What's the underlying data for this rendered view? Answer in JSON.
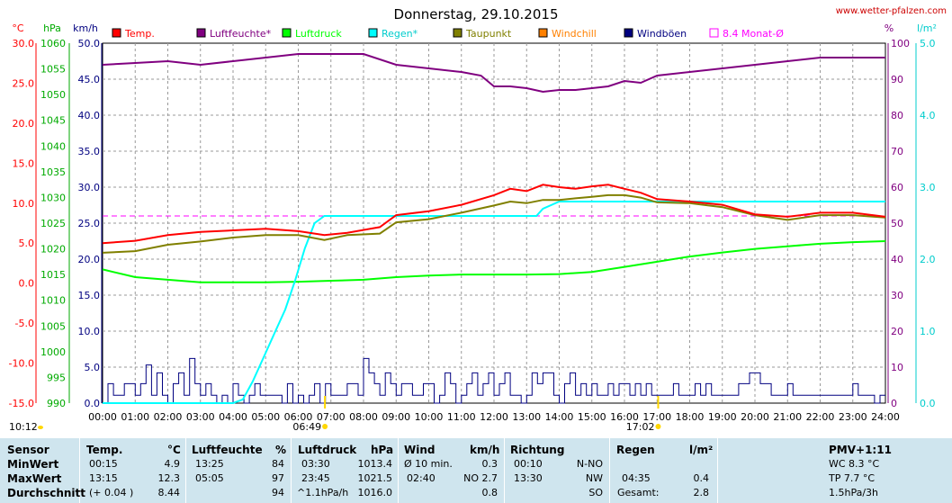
{
  "title": "Donnerstag, 29.10.2015",
  "source": "www.wetter-pfalzen.com",
  "axis_units": {
    "temp": "°C",
    "pressure": "hPa",
    "wind": "km/h",
    "humidity": "%",
    "rain": "l/m²"
  },
  "legend": [
    "Temp.",
    "Luftfeuchte*",
    "Luftdruck",
    "Regen*",
    "Taupunkt",
    "Windchill",
    "Windböen",
    "8.4 Monat-Ø"
  ],
  "markers": {
    "sunrise": "06:49",
    "sunset": "17:02",
    "moon_left": "10:12"
  },
  "colors": {
    "temp": "#ff0000",
    "humidity": "#800080",
    "pressure": "#00ff00",
    "rain": "#00ffff",
    "dew": "#808000",
    "windchill": "#ff8000",
    "gust": "#000080",
    "month_avg": "#ff00ff",
    "summary_bg": "#cfe5ee"
  },
  "chart_data": {
    "type": "line",
    "x_label_unit": "time",
    "x_ticks": [
      "00:00",
      "01:00",
      "02:00",
      "03:00",
      "04:00",
      "05:00",
      "06:00",
      "07:00",
      "08:00",
      "09:00",
      "10:00",
      "11:00",
      "12:00",
      "13:00",
      "14:00",
      "15:00",
      "16:00",
      "17:00",
      "18:00",
      "19:00",
      "20:00",
      "21:00",
      "22:00",
      "23:00",
      "24:00"
    ],
    "axes": {
      "temp": {
        "label": "°C",
        "range": [
          -15,
          30
        ],
        "ticks": [
          "30.0",
          "25.0",
          "20.0",
          "15.0",
          "10.0",
          "5.0",
          "0.0",
          "-5.0",
          "-10.0",
          "-15.0"
        ]
      },
      "pressure": {
        "label": "hPa",
        "range": [
          990,
          1060
        ],
        "ticks": [
          "1060",
          "1055",
          "1050",
          "1045",
          "1040",
          "1035",
          "1030",
          "1025",
          "1020",
          "1015",
          "1010",
          "1005",
          "1000",
          "995",
          "990"
        ]
      },
      "wind": {
        "label": "km/h",
        "range": [
          0,
          50
        ],
        "ticks": [
          "50.0",
          "45.0",
          "40.0",
          "35.0",
          "30.0",
          "25.0",
          "20.0",
          "15.0",
          "10.0",
          "5.0",
          "0.0"
        ]
      },
      "humidity": {
        "label": "%",
        "range": [
          0,
          100
        ],
        "ticks": [
          "100",
          "90",
          "80",
          "70",
          "60",
          "50",
          "40",
          "30",
          "20",
          "10",
          "0"
        ]
      },
      "rain": {
        "label": "l/m²",
        "range": [
          0,
          5
        ],
        "ticks": [
          "5.0",
          "4.0",
          "3.0",
          "2.0",
          "1.0",
          "0.0"
        ]
      }
    },
    "grid": true,
    "series": [
      {
        "name": "Temp.",
        "axis": "temp",
        "x": [
          0,
          1,
          2,
          3,
          4,
          5,
          6,
          6.8,
          7.5,
          8.5,
          9,
          10,
          11,
          12,
          12.5,
          13,
          13.5,
          14,
          14.5,
          15,
          15.5,
          16,
          16.5,
          17,
          18,
          19,
          20,
          21,
          22,
          23,
          24
        ],
        "y": [
          5.0,
          5.3,
          6.0,
          6.4,
          6.6,
          6.8,
          6.5,
          6.0,
          6.3,
          7.0,
          8.5,
          9.0,
          9.8,
          11.0,
          11.8,
          11.5,
          12.3,
          12.0,
          11.8,
          12.1,
          12.3,
          11.8,
          11.3,
          10.5,
          10.2,
          9.8,
          8.6,
          8.3,
          8.8,
          8.8,
          8.3
        ]
      },
      {
        "name": "Luftfeuchte*",
        "axis": "humidity",
        "x": [
          0,
          1,
          2,
          3,
          4,
          5,
          6,
          7,
          8,
          9,
          10,
          11,
          11.6,
          12,
          12.5,
          13,
          13.5,
          14,
          14.5,
          15,
          15.5,
          16,
          16.5,
          17,
          18,
          19,
          20,
          21,
          22,
          23,
          24
        ],
        "y": [
          94,
          94.5,
          95,
          94,
          95,
          96,
          97,
          97,
          97,
          94,
          93,
          92,
          91,
          88,
          88,
          87.5,
          86.5,
          87,
          87,
          87.5,
          88,
          89.5,
          89,
          91,
          92,
          93,
          94,
          95,
          96,
          96,
          96
        ]
      },
      {
        "name": "Luftdruck",
        "axis": "pressure",
        "x": [
          0,
          1,
          2,
          3,
          4,
          5,
          6,
          7,
          8,
          9,
          10,
          11,
          12,
          13,
          14,
          15,
          16,
          17,
          18,
          19,
          20,
          21,
          22,
          23,
          24
        ],
        "y": [
          1016.0,
          1014.5,
          1014.0,
          1013.5,
          1013.5,
          1013.5,
          1013.6,
          1013.8,
          1014.0,
          1014.5,
          1014.8,
          1015.0,
          1015.0,
          1015.0,
          1015.1,
          1015.5,
          1016.5,
          1017.5,
          1018.5,
          1019.3,
          1020.0,
          1020.5,
          1021.0,
          1021.3,
          1021.5
        ]
      },
      {
        "name": "Regen*",
        "axis": "rain",
        "x": [
          0,
          1,
          2,
          3,
          4,
          4.3,
          4.6,
          5,
          5.3,
          5.6,
          5.9,
          6.2,
          6.5,
          6.8,
          7,
          7.5,
          8,
          9,
          10,
          11,
          12,
          13,
          13.3,
          13.5,
          14,
          15,
          16,
          17,
          18,
          19,
          20,
          21,
          22,
          23,
          24
        ],
        "y": [
          0,
          0,
          0,
          0,
          0,
          0.05,
          0.3,
          0.7,
          1.0,
          1.3,
          1.7,
          2.15,
          2.5,
          2.6,
          2.6,
          2.6,
          2.6,
          2.6,
          2.6,
          2.6,
          2.6,
          2.6,
          2.6,
          2.7,
          2.8,
          2.8,
          2.8,
          2.8,
          2.8,
          2.8,
          2.8,
          2.8,
          2.8,
          2.8,
          2.8
        ]
      },
      {
        "name": "Taupunkt",
        "axis": "temp",
        "x": [
          0,
          1,
          2,
          3,
          4,
          5,
          6,
          6.8,
          7.5,
          8.5,
          9,
          10,
          11,
          12,
          12.5,
          13,
          13.5,
          14,
          14.5,
          15,
          15.5,
          16,
          16.5,
          17,
          18,
          19,
          20,
          21,
          22,
          23,
          24
        ],
        "y": [
          3.8,
          4.0,
          4.8,
          5.2,
          5.7,
          6.0,
          6.0,
          5.4,
          6.0,
          6.2,
          7.6,
          8.0,
          8.8,
          9.7,
          10.2,
          10.0,
          10.4,
          10.4,
          10.6,
          10.8,
          11.0,
          11.0,
          10.7,
          10.1,
          10.0,
          9.5,
          8.5,
          7.9,
          8.5,
          8.5,
          8.2
        ]
      }
    ],
    "gust_series": {
      "name": "Windböen",
      "axis": "wind",
      "step_minutes": 10,
      "values": [
        0,
        2.7,
        1.1,
        1.1,
        2.7,
        2.7,
        1.1,
        2.7,
        5.3,
        1.1,
        4.2,
        1.1,
        0,
        2.7,
        4.2,
        1.1,
        6.2,
        2.7,
        1.1,
        2.7,
        1.1,
        0,
        1.1,
        0,
        2.7,
        1.1,
        0,
        1.1,
        2.7,
        1.1,
        1.1,
        1.1,
        1.1,
        0,
        2.7,
        0,
        1.1,
        0,
        1.1,
        2.7,
        0,
        2.7,
        1.1,
        1.1,
        1.1,
        2.7,
        2.7,
        1.1,
        6.2,
        4.2,
        2.7,
        1.1,
        4.2,
        2.7,
        1.1,
        2.7,
        2.7,
        1.1,
        1.1,
        2.7,
        2.7,
        0,
        1.1,
        4.2,
        2.7,
        0,
        1.1,
        2.7,
        4.2,
        1.1,
        2.7,
        4.2,
        1.1,
        2.7,
        4.2,
        1.1,
        1.1,
        0,
        1.1,
        4.2,
        2.7,
        4.2,
        4.2,
        1.1,
        0,
        2.7,
        4.2,
        1.1,
        2.7,
        1.1,
        2.7,
        1.1,
        1.1,
        2.7,
        1.1,
        2.7,
        2.7,
        1.1,
        2.7,
        1.1,
        2.7,
        1.1,
        1.1,
        1.1,
        1.1,
        2.7,
        1.1,
        1.1,
        1.1,
        2.7,
        1.1,
        2.7,
        1.1,
        1.1,
        1.1,
        1.1,
        1.1,
        2.7,
        2.7,
        4.2,
        4.2,
        2.7,
        2.7,
        1.1,
        1.1,
        1.1,
        2.7,
        1.1,
        1.1,
        1.1,
        1.1,
        1.1,
        1.1,
        1.1,
        1.1,
        1.1,
        1.1,
        1.1,
        2.7,
        1.1,
        1.1,
        1.1,
        0,
        1.1
      ]
    },
    "month_avg": {
      "name": "8.4 Monat-Ø",
      "axis": "temp",
      "value": 8.4
    }
  },
  "summary": {
    "headers": {
      "sensor": "Sensor",
      "temp": "Temp.",
      "temp_unit": "°C",
      "hum": "Luftfeuchte",
      "hum_unit": "%",
      "press": "Luftdruck",
      "press_unit": "hPa",
      "wind": "Wind",
      "wind_unit": "km/h",
      "dir": "Richtung",
      "rain": "Regen",
      "rain_unit": "l/m²",
      "pmv": "PMV+1:11"
    },
    "rows": [
      {
        "label": "MinWert",
        "temp_time": "00:15",
        "temp_val": "4.9",
        "hum_time": "13:25",
        "hum_val": "84",
        "press_time": "03:30",
        "press_val": "1013.4",
        "wind_time": "Ø 10 min.",
        "wind_val": "0.3",
        "dir_time": "00:10",
        "dir_val": "N-NO",
        "rain_time": "",
        "rain_val": "",
        "pmv": "WC 8.3 °C"
      },
      {
        "label": "MaxWert",
        "temp_time": "13:15",
        "temp_val": "12.3",
        "hum_time": "05:05",
        "hum_val": "97",
        "press_time": "23:45",
        "press_val": "1021.5",
        "wind_time": "02:40",
        "wind_val": "NO 2.7",
        "dir_time": "13:30",
        "dir_val": "NW",
        "rain_time": "04:35",
        "rain_val": "0.4",
        "pmv": "TP 7.7 °C"
      },
      {
        "label": "Durchschnitt",
        "temp_time": "(+ 0.04 )",
        "temp_val": "8.44",
        "hum_time": "",
        "hum_val": "94",
        "press_time": "^1.1hPa/h",
        "press_val": "1016.0",
        "wind_time": "",
        "wind_val": "0.8",
        "dir_time": "",
        "dir_val": "SO",
        "rain_time": "Gesamt:",
        "rain_val": "2.8",
        "pmv": "1.5hPa/3h"
      }
    ]
  }
}
